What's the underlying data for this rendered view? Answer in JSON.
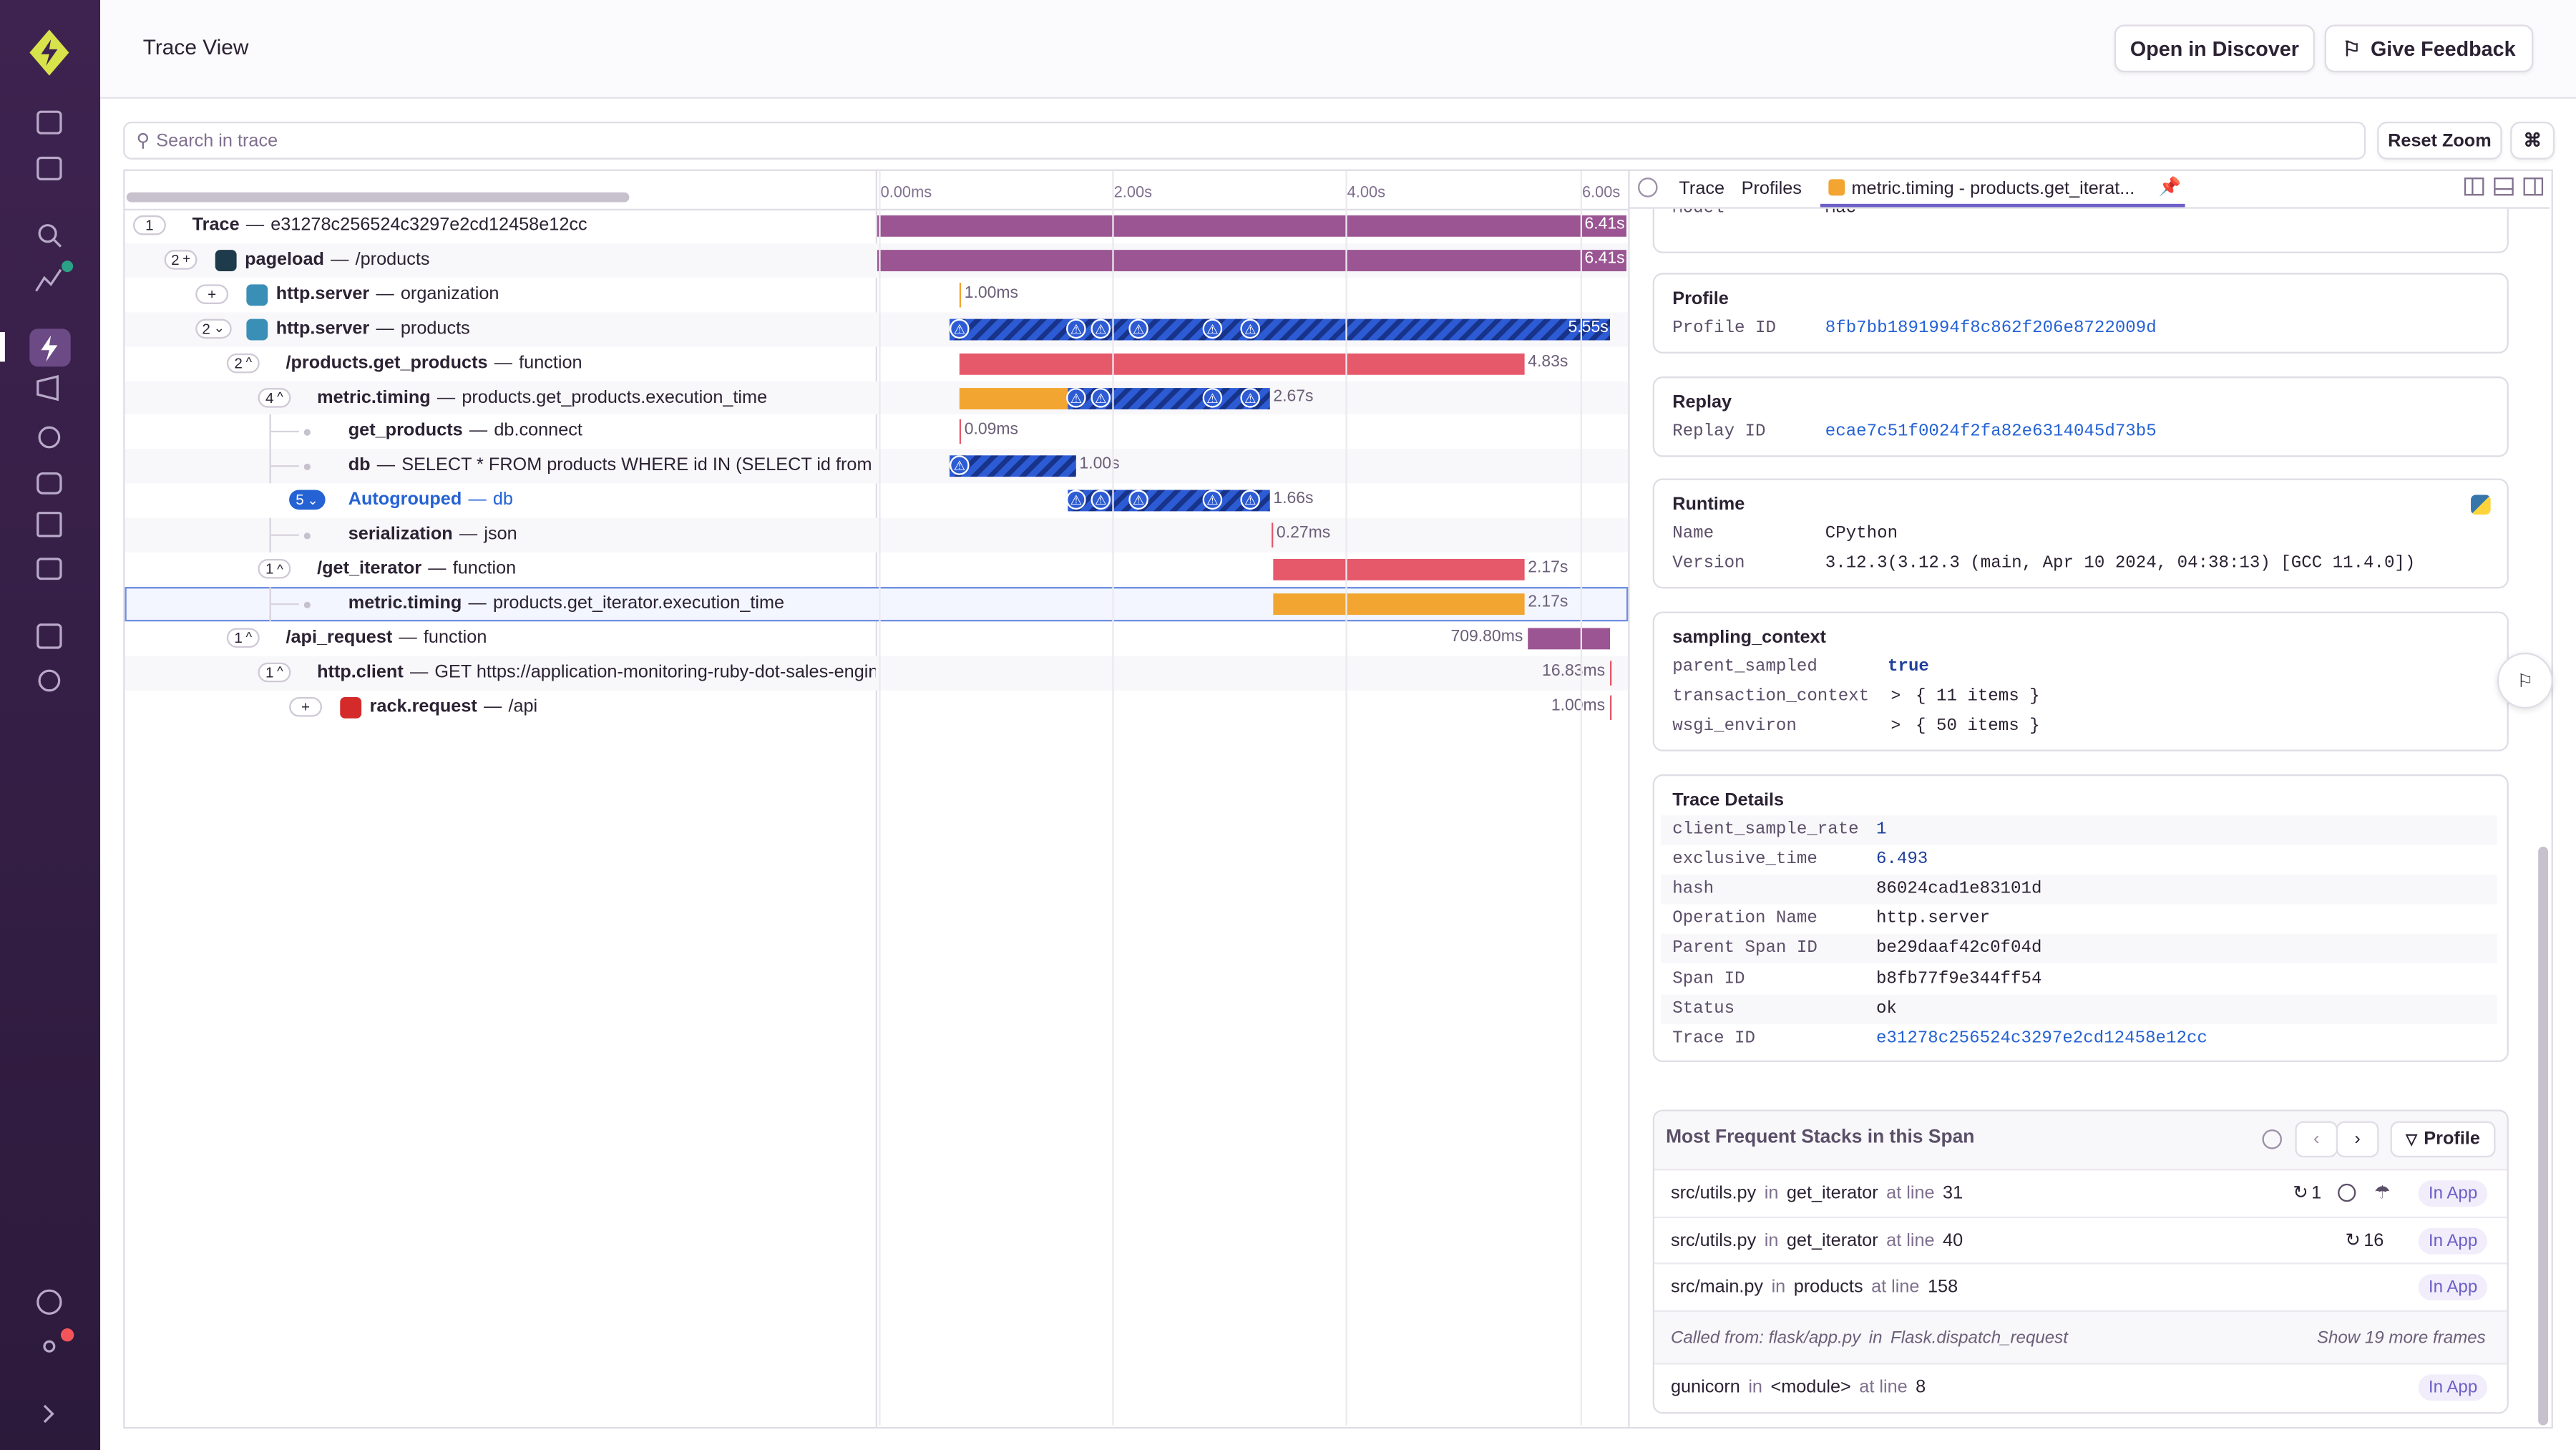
{
  "header": {
    "title": "Trace View",
    "buttons": [
      "Open in Discover",
      "Give Feedback"
    ]
  },
  "toolbar": {
    "search_placeholder": "Search in trace",
    "reset_zoom": "Reset Zoom",
    "shortcut": "⌘"
  },
  "timeline": {
    "ticks": [
      "0.00ms",
      "2.00s",
      "4.00s",
      "6.00s"
    ]
  },
  "separator": "—",
  "rows": [
    {
      "count": "1",
      "toggle": "none",
      "name": "Trace",
      "description": "e31278c256524c3297e2cd12458e12cc",
      "duration": "6.41s",
      "colors": [
        "#9b5593"
      ]
    },
    {
      "count": "2",
      "toggle": "plus",
      "icon": "react",
      "name": "pageload",
      "description": "/products",
      "duration": "6.41s",
      "colors": [
        "#9b5593"
      ]
    },
    {
      "count": "+",
      "toggle": "none",
      "icon": "python",
      "name": "http.server",
      "description": "organization",
      "duration": "1.00ms",
      "colors": [
        "#f2a530"
      ]
    },
    {
      "count": "2",
      "toggle": "down",
      "icon": "python",
      "name": "http.server",
      "description": "products",
      "duration": "5.55s",
      "colors": [
        "striped"
      ]
    },
    {
      "count": "2",
      "toggle": "up",
      "name": "/products.get_products",
      "description": "function",
      "duration": "4.83s",
      "colors": [
        "#e5596b"
      ]
    },
    {
      "count": "4",
      "toggle": "up",
      "name": "metric.timing",
      "description": "products.get_products.execution_time",
      "duration": "2.67s",
      "colors": [
        "#f2a530",
        "striped"
      ]
    },
    {
      "name": "get_products",
      "description": "db.connect",
      "duration": "0.09ms",
      "colors": [
        "#e5596b"
      ]
    },
    {
      "name": "db",
      "description": "SELECT * FROM products WHERE id IN (SELECT id from products",
      "duration": "1.00s",
      "colors": [
        "striped"
      ]
    },
    {
      "count": "5",
      "toggle": "down",
      "autogrouped": true,
      "name": "Autogrouped",
      "description": "db",
      "duration": "1.66s",
      "colors": [
        "striped"
      ]
    },
    {
      "name": "serialization",
      "description": "json",
      "duration": "0.27ms",
      "colors": [
        "#e5596b"
      ]
    },
    {
      "count": "1",
      "toggle": "up",
      "name": "/get_iterator",
      "description": "function",
      "duration": "2.17s",
      "colors": [
        "#e5596b"
      ]
    },
    {
      "selected": true,
      "name": "metric.timing",
      "description": "products.get_iterator.execution_time",
      "duration": "2.17s",
      "colors": [
        "#f2a530"
      ]
    },
    {
      "count": "1",
      "toggle": "up",
      "name": "/api_request",
      "description": "function",
      "duration": "709.80ms",
      "colors": [
        "#9b5593"
      ]
    },
    {
      "count": "1",
      "toggle": "up",
      "name": "http.client",
      "description": "GET https://application-monitoring-ruby-dot-sales-engineering",
      "duration": "16.83ms",
      "colors": [
        "#e5596b"
      ]
    },
    {
      "count": "+",
      "toggle": "none",
      "icon": "rails",
      "name": "rack.request",
      "description": "/api",
      "duration": "1.00ms",
      "colors": [
        "#e5596b"
      ]
    }
  ],
  "panel": {
    "tabs": [
      "Trace",
      "Profiles",
      "metric.timing - products.get_iterat..."
    ],
    "sections": [
      {
        "rows": [
          {
            "key": "Model",
            "value": "Mac"
          }
        ]
      },
      {
        "title": "Profile",
        "rows": [
          {
            "key": "Profile ID",
            "value": "8fb7bb1891994f8c862f206e8722009d",
            "color": "#2562d4"
          }
        ]
      },
      {
        "title": "Replay",
        "rows": [
          {
            "key": "Replay ID",
            "value": "ecae7c51f0024f2fa82e6314045d73b5",
            "color": "#2562d4"
          }
        ]
      },
      {
        "title": "Runtime",
        "rows": [
          {
            "key": "Name",
            "value": "CPython"
          },
          {
            "key": "Version",
            "value": "3.12.3(3.12.3 (main, Apr 10 2024, 04:38:13) [GCC 11.4.0])"
          }
        ]
      },
      {
        "title": "sampling_context",
        "rows": [
          {
            "key": "parent_sampled",
            "value": "true",
            "color": "#1f3f9e"
          },
          {
            "key": "transaction_context",
            "value": "{ 11 items }",
            "collapsed": true
          },
          {
            "key": "wsgi_environ",
            "value": "{ 50 items }",
            "collapsed": true
          }
        ]
      },
      {
        "title": "Trace Details",
        "rows": [
          {
            "key": "client_sample_rate",
            "value": "1",
            "color": "#1f3f9e"
          },
          {
            "key": "exclusive_time",
            "value": "6.493",
            "color": "#1f3f9e"
          },
          {
            "key": "hash",
            "value": "86024cad1e83101d"
          },
          {
            "key": "Operation Name",
            "value": "http.server"
          },
          {
            "key": "Parent Span ID",
            "value": "be29daaf42c0f04d"
          },
          {
            "key": "Span ID",
            "value": "b8fb77f9e344ff54"
          },
          {
            "key": "Status",
            "value": "ok"
          },
          {
            "key": "Trace ID",
            "value": "e31278c256524c3297e2cd12458e12cc",
            "color": "#2562d4"
          }
        ]
      }
    ],
    "stacks": {
      "title": "Most Frequent Stacks in this Span",
      "button": "Profile",
      "frames": [
        {
          "file": "src/utils.py",
          "in": "in",
          "function": "get_iterator",
          "at": "at line",
          "line": "31",
          "count": "1",
          "badge": "In App"
        },
        {
          "file": "src/utils.py",
          "in": "in",
          "function": "get_iterator",
          "at": "at line",
          "line": "40",
          "count": "16",
          "badge": "In App"
        },
        {
          "file": "src/main.py",
          "in": "in",
          "function": "products",
          "at": "at line",
          "line": "158",
          "badge": "In App"
        }
      ],
      "called_from": {
        "text": "Called from: flask/app.py",
        "in": "in",
        "function": "Flask.dispatch_request",
        "more": "Show 19 more frames"
      },
      "last_frame": {
        "file": "gunicorn",
        "in": "in",
        "function": "<module>",
        "at": "at line",
        "line": "8",
        "badge": "In App"
      }
    }
  }
}
